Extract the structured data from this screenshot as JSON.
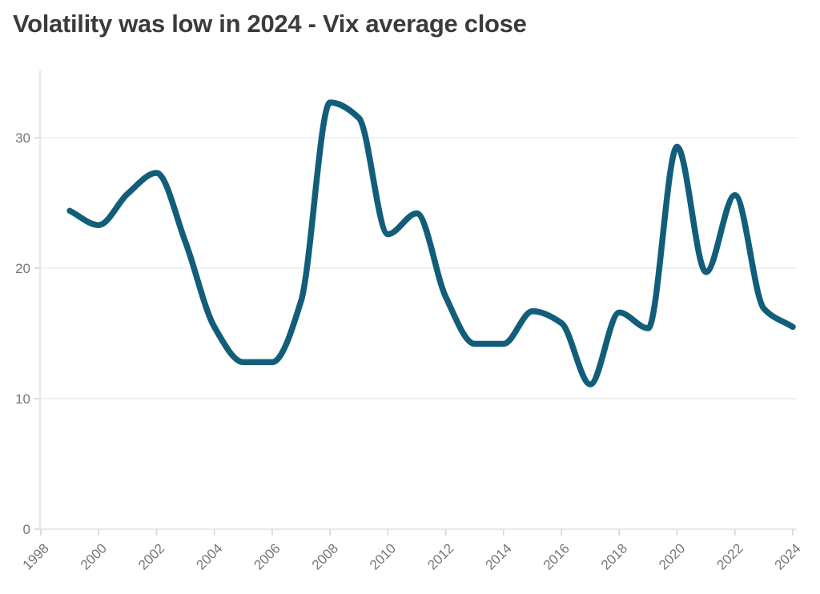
{
  "chart_data": {
    "type": "line",
    "title": "Volatility was low in 2024 - Vix average close",
    "series": [
      {
        "name": "Vix average close",
        "x": [
          1999,
          2000,
          2001,
          2002,
          2003,
          2004,
          2005,
          2006,
          2007,
          2008,
          2009,
          2010,
          2011,
          2012,
          2013,
          2014,
          2015,
          2016,
          2017,
          2018,
          2019,
          2020,
          2021,
          2022,
          2023,
          2024
        ],
        "values": [
          24.4,
          23.3,
          25.7,
          27.3,
          22.0,
          15.5,
          12.8,
          12.8,
          17.5,
          32.7,
          31.5,
          22.6,
          24.2,
          17.8,
          14.2,
          14.2,
          16.7,
          15.8,
          11.1,
          16.6,
          15.4,
          29.3,
          19.7,
          25.6,
          16.9,
          15.5
        ]
      }
    ],
    "xticks": [
      1998,
      2000,
      2002,
      2004,
      2006,
      2008,
      2010,
      2012,
      2014,
      2016,
      2018,
      2020,
      2022,
      2024
    ],
    "yticks": [
      0,
      10,
      20,
      30
    ],
    "xlim": [
      1998,
      2024
    ],
    "ylim": [
      0,
      35
    ],
    "grid": "horizontal",
    "legend": "none",
    "x_tick_rotation_deg": -45,
    "colors": {
      "line": "#125e7a",
      "title": "#3b3b3b",
      "tick_label": "#767676",
      "gridline": "#ebebeb",
      "axis_line": "#e2e2e2",
      "tick_mark": "#d6d6d6",
      "background": "#ffffff"
    },
    "line_width": 7.5
  }
}
